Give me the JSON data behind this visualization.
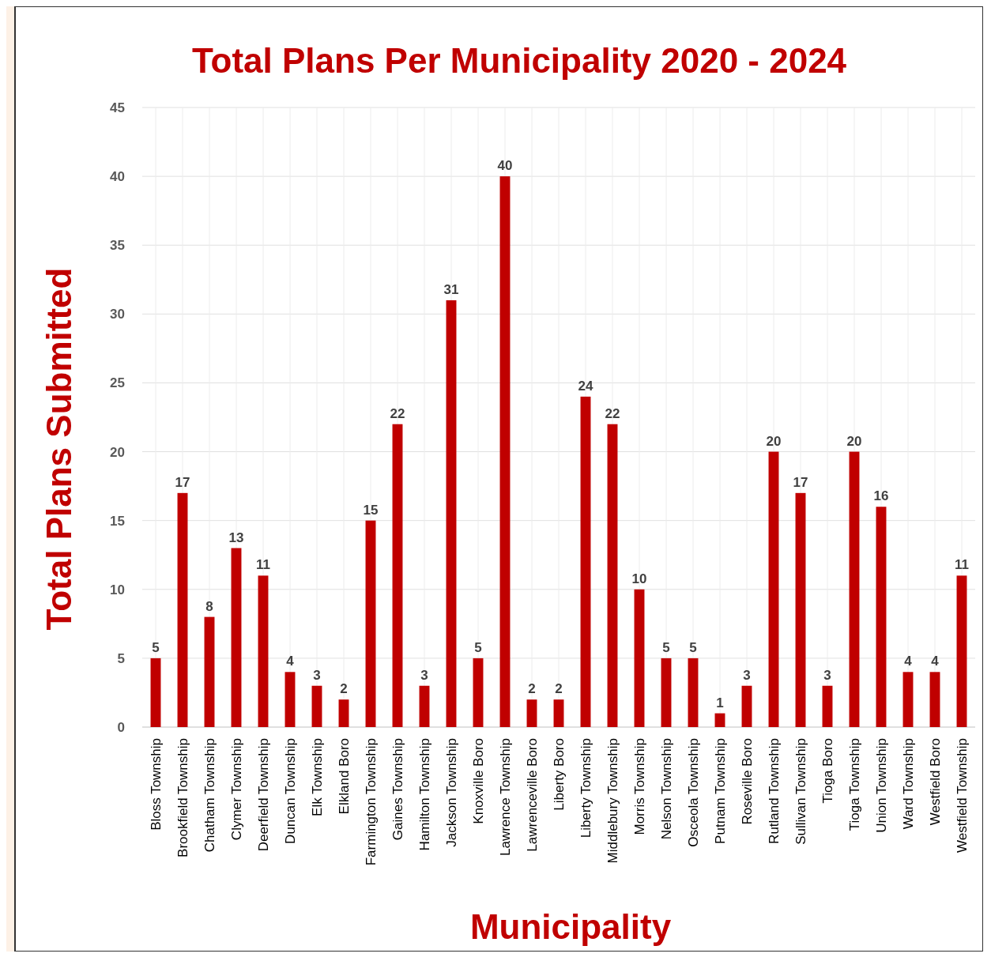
{
  "chart_data": {
    "type": "bar",
    "title": "Total Plans Per Municipality 2020 - 2024",
    "xlabel": "Municipality",
    "ylabel": "Total Plans Submitted",
    "categories": [
      "Bloss Township",
      "Brookfield Township",
      "Chatham Township",
      "Clymer Township",
      "Deerfield Township",
      "Duncan Township",
      "Elk Township",
      "Elkland Boro",
      "Farmington Township",
      "Gaines Township",
      "Hamilton Township",
      "Jackson Township",
      "Knoxville Boro",
      "Lawrence Township",
      "Lawrenceville Boro",
      "Liberty Boro",
      "Liberty Township",
      "Middlebury Township",
      "Morris Township",
      "Nelson Township",
      "Osceola Township",
      "Putnam Township",
      "Roseville Boro",
      "Rutland Township",
      "Sullivan Township",
      "Tioga Boro",
      "Tioga Township",
      "Union Township",
      "Ward Township",
      "Westfield Boro",
      "Westfield Township"
    ],
    "values": [
      5,
      17,
      8,
      13,
      11,
      4,
      3,
      2,
      15,
      22,
      3,
      31,
      5,
      40,
      2,
      2,
      24,
      22,
      10,
      5,
      5,
      1,
      3,
      20,
      17,
      3,
      20,
      16,
      4,
      4,
      11
    ],
    "color": "#c00000",
    "ylim": [
      0,
      45
    ],
    "yticks": [
      0,
      5,
      10,
      15,
      20,
      25,
      30,
      35,
      40,
      45
    ],
    "grid": true,
    "data_labels": true
  }
}
